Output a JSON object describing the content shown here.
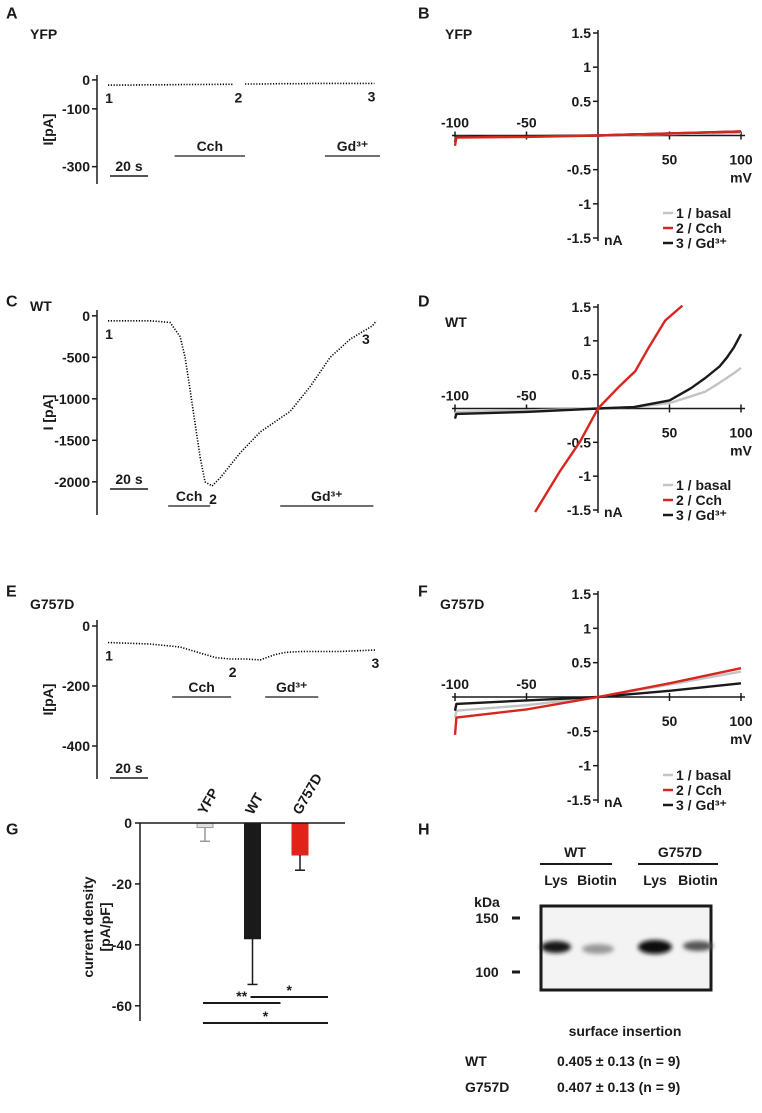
{
  "chart_data": [
    {
      "type": "trace",
      "panel": "A",
      "title": "YFP",
      "ylabel": "I[pA]",
      "color": "#000000",
      "xlim": [
        0,
        144
      ],
      "ylim": [
        -360,
        17
      ],
      "yticks": [
        0,
        -100,
        -300
      ],
      "x": [
        0,
        10,
        20,
        30,
        40,
        50,
        60,
        66,
        68,
        72,
        80,
        90,
        100,
        110,
        120,
        130,
        140
      ],
      "values": [
        -18,
        -18,
        -17,
        -17,
        -16,
        -16,
        -15,
        -15,
        null,
        -14,
        -14,
        -13,
        -13,
        -12,
        -12,
        -12,
        -12
      ],
      "point_labels": [
        {
          "x": 0,
          "label": "1"
        },
        {
          "x": 68,
          "label": "2"
        },
        {
          "x": 138,
          "label": "3"
        }
      ],
      "treatments": [
        {
          "label": "Cch",
          "xrange": [
            35,
            72
          ]
        },
        {
          "label": "Gd³⁺",
          "xrange": [
            114,
            143
          ]
        }
      ],
      "scale_bar": {
        "value": 20,
        "label": "20 s"
      }
    },
    {
      "type": "line",
      "panel": "B",
      "title": "YFP",
      "xlabel": "mV",
      "ylabel": "nA",
      "xlim": [
        -100,
        100
      ],
      "ylim": [
        -1.5,
        1.5
      ],
      "xticks": [
        -100,
        -50,
        50,
        100
      ],
      "yticks": [
        1.5,
        1,
        0.5,
        -0.5,
        -1,
        -1.5
      ],
      "legend": "lower right",
      "series": [
        {
          "name": "1 / basal",
          "color": "#c4c4c4",
          "x": [
            -100,
            -99,
            -50,
            0,
            50,
            100
          ],
          "values": [
            -0.05,
            -0.02,
            -0.01,
            0,
            0.02,
            0.04
          ]
        },
        {
          "name": "2 / Cch",
          "color": "#d7261e",
          "x": [
            -100,
            -99,
            -50,
            0,
            50,
            100
          ],
          "values": [
            -0.15,
            -0.03,
            -0.02,
            0,
            0.03,
            0.06
          ]
        },
        {
          "name": "3 / Gd³⁺",
          "color": "#1a1a1a",
          "x": [
            -100,
            -99,
            -50,
            0,
            50,
            100
          ],
          "values": [
            -0.1,
            -0.02,
            -0.01,
            0,
            0.03,
            0.06
          ]
        }
      ]
    },
    {
      "type": "trace",
      "panel": "C",
      "title": "WT",
      "ylabel": "I [pA]",
      "color": "#000000",
      "xlim": [
        0,
        144
      ],
      "ylim": [
        -2400,
        70
      ],
      "yticks": [
        0,
        -500,
        -1000,
        -1500,
        -2000
      ],
      "x": [
        0,
        11.6,
        22,
        32.6,
        37.9,
        40.5,
        43.2,
        45.8,
        48.4,
        51,
        54.7,
        59,
        69.5,
        80,
        95.8,
        106.3,
        116.8,
        127.4,
        139,
        141
      ],
      "values": [
        -60,
        -60,
        -60,
        -80,
        -250,
        -500,
        -900,
        -1300,
        -1700,
        -2000,
        -2050,
        -1950,
        -1650,
        -1400,
        -1150,
        -850,
        -500,
        -280,
        -120,
        -60
      ],
      "point_labels": [
        {
          "x": 0,
          "label": "1"
        },
        {
          "x": 54.7,
          "label": "2"
        },
        {
          "x": 135,
          "label": "3"
        }
      ],
      "treatments": [
        {
          "label": "Cch",
          "xrange": [
            31.6,
            53.7
          ]
        },
        {
          "label": "Gd³⁺",
          "xrange": [
            90.5,
            139.5
          ]
        }
      ],
      "scale_bar": {
        "value": 20,
        "label": "20 s"
      }
    },
    {
      "type": "line",
      "panel": "D",
      "title": "WT",
      "xlabel": "mV",
      "ylabel": "nA",
      "xlim": [
        -100,
        100
      ],
      "ylim": [
        -1.5,
        1.5
      ],
      "xticks": [
        -100,
        -50,
        50,
        100
      ],
      "yticks": [
        1.5,
        1,
        0.5,
        -0.5,
        -1,
        -1.5
      ],
      "legend": "lower right",
      "series": [
        {
          "name": "1 / basal",
          "color": "#c4c4c4",
          "x": [
            -100,
            -99,
            -50,
            0,
            25,
            50,
            65,
            75,
            85,
            90,
            95,
            100
          ],
          "values": [
            -0.1,
            -0.05,
            -0.03,
            0,
            0.02,
            0.08,
            0.18,
            0.25,
            0.38,
            0.45,
            0.52,
            0.6
          ]
        },
        {
          "name": "2 / Cch",
          "color": "#d7261e",
          "x": [
            -44,
            -27,
            -12.6,
            0,
            15,
            26,
            36,
            47,
            59
          ],
          "values": [
            -1.53,
            -0.94,
            -0.49,
            0,
            0.33,
            0.55,
            0.92,
            1.3,
            1.52
          ]
        },
        {
          "name": "3 / Gd³⁺",
          "color": "#1a1a1a",
          "x": [
            -100,
            -99,
            -50,
            0,
            25,
            50,
            65,
            75,
            85,
            90,
            95,
            100
          ],
          "values": [
            -0.15,
            -0.08,
            -0.05,
            0,
            0.02,
            0.12,
            0.3,
            0.45,
            0.62,
            0.75,
            0.9,
            1.1
          ]
        }
      ]
    },
    {
      "type": "trace",
      "panel": "E",
      "title": "G757D",
      "ylabel": "I[pA]",
      "color": "#000000",
      "xlim": [
        0,
        144
      ],
      "ylim": [
        -510,
        20
      ],
      "yticks": [
        0,
        -200,
        -400
      ],
      "x": [
        0,
        22,
        37.9,
        48.4,
        56.3,
        64.2,
        72.1,
        80,
        87.9,
        93.2,
        101,
        122,
        140.5
      ],
      "values": [
        -55,
        -60,
        -70,
        -90,
        -105,
        -110,
        -110,
        -113,
        -95,
        -88,
        -85,
        -85,
        -80
      ],
      "point_labels": [
        {
          "x": 0,
          "label": "1"
        },
        {
          "x": 65,
          "label": "2"
        },
        {
          "x": 140,
          "label": "3"
        }
      ],
      "treatments": [
        {
          "label": "Cch",
          "xrange": [
            33.7,
            64.7
          ]
        },
        {
          "label": "Gd³⁺",
          "xrange": [
            82.6,
            110.5
          ]
        }
      ],
      "scale_bar": {
        "value": 20,
        "label": "20 s"
      }
    },
    {
      "type": "line",
      "panel": "F",
      "title": "G757D",
      "xlabel": "mV",
      "ylabel": "nA",
      "xlim": [
        -100,
        100
      ],
      "ylim": [
        -1.5,
        1.5
      ],
      "xticks": [
        -100,
        -50,
        50,
        100
      ],
      "yticks": [
        1.5,
        1,
        0.5,
        -0.5,
        -1,
        -1.5
      ],
      "legend": "lower right",
      "series": [
        {
          "name": "1 / basal",
          "color": "#c4c4c4",
          "x": [
            -100,
            -99,
            -50,
            0,
            50,
            100
          ],
          "values": [
            -0.3,
            -0.2,
            -0.12,
            0,
            0.18,
            0.37
          ]
        },
        {
          "name": "2 / Cch",
          "color": "#d7261e",
          "x": [
            -100,
            -99,
            -50,
            0,
            50,
            100
          ],
          "values": [
            -0.55,
            -0.3,
            -0.18,
            0,
            0.2,
            0.42
          ]
        },
        {
          "name": "3 / Gd³⁺",
          "color": "#1a1a1a",
          "x": [
            -100,
            -99,
            -50,
            0,
            50,
            100
          ],
          "values": [
            -0.2,
            -0.1,
            -0.05,
            0,
            0.09,
            0.2
          ]
        }
      ]
    },
    {
      "type": "bar",
      "panel": "G",
      "ylabel": [
        "current density",
        "[pA/pF]"
      ],
      "categories": [
        "YFP",
        "WT",
        "G757D"
      ],
      "values": [
        -1.5,
        -38,
        -10.5
      ],
      "errors": [
        4.5,
        15,
        5
      ],
      "colors": [
        "#e0e0e0",
        "#1a1a1a",
        "#e2231a"
      ],
      "ylim": [
        -65,
        0
      ],
      "yticks": [
        0,
        -20,
        -40,
        -60
      ],
      "significance": [
        {
          "between": [
            "YFP",
            "WT"
          ],
          "label": "**"
        },
        {
          "between": [
            "WT",
            "G757D"
          ],
          "label": "*"
        },
        {
          "between": [
            "YFP",
            "G757D"
          ],
          "label": "*"
        }
      ]
    }
  ],
  "blot": {
    "panel": "H",
    "groups": [
      {
        "label": "WT",
        "lanes": [
          "Lys",
          "Biotin"
        ]
      },
      {
        "label": "G757D",
        "lanes": [
          "Lys",
          "Biotin"
        ]
      }
    ],
    "unit": "kDa",
    "markers": [
      150,
      100
    ],
    "caption": "surface insertion",
    "rows": [
      [
        "WT",
        "0.405 ± 0.13 (n = 9)"
      ],
      [
        "G757D",
        "0.407 ± 0.13 (n = 9)"
      ]
    ]
  }
}
